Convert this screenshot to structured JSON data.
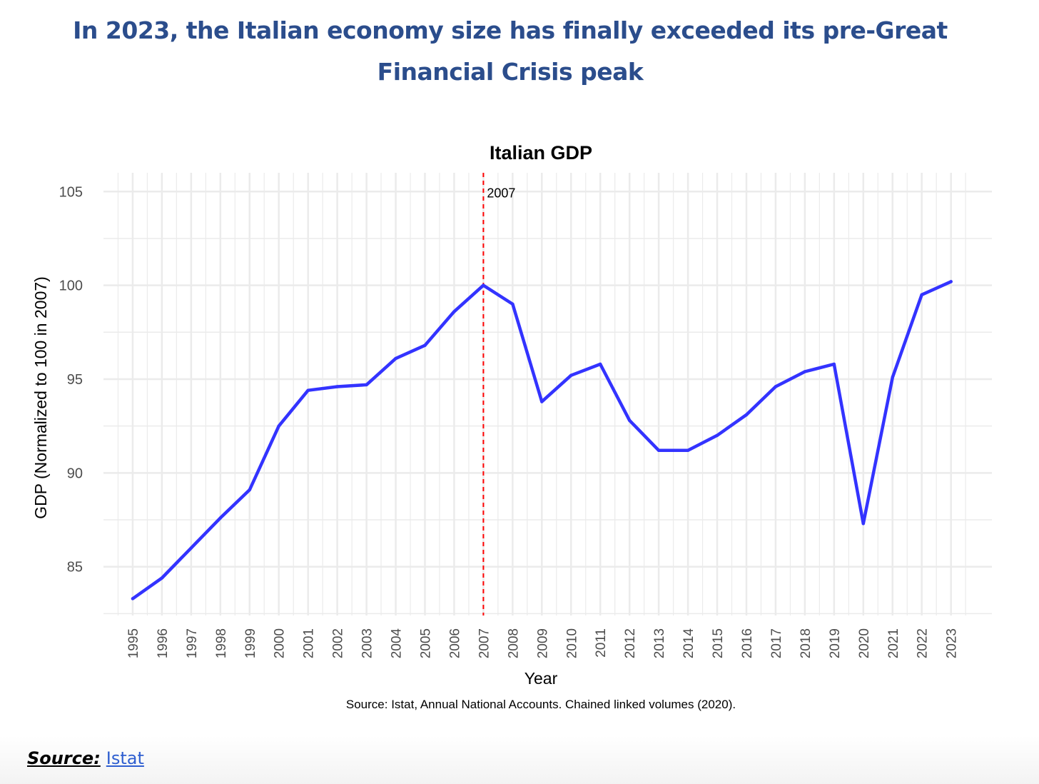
{
  "headline": "In 2023, the Italian economy size has finally exceeded its pre-Great Financial Crisis peak",
  "chart_data": {
    "type": "line",
    "title": "Italian GDP",
    "xlabel": "Year",
    "ylabel": "GDP (Normalized to 100 in 2007)",
    "caption": "Source: Istat, Annual National Accounts. Chained linked volumes (2020).",
    "x": [
      1995,
      1996,
      1997,
      1998,
      1999,
      2000,
      2001,
      2002,
      2003,
      2004,
      2005,
      2006,
      2007,
      2008,
      2009,
      2010,
      2011,
      2012,
      2013,
      2014,
      2015,
      2016,
      2017,
      2018,
      2019,
      2020,
      2021,
      2022,
      2023
    ],
    "series": [
      {
        "name": "GDP",
        "values": [
          83.3,
          84.4,
          86.0,
          87.6,
          89.1,
          92.5,
          94.4,
          94.6,
          94.7,
          96.1,
          96.8,
          98.6,
          100.0,
          99.0,
          93.8,
          95.2,
          95.8,
          92.8,
          91.2,
          91.2,
          92.0,
          93.1,
          94.6,
          95.4,
          95.8,
          87.3,
          95.1,
          99.5,
          100.2
        ]
      }
    ],
    "yticks": [
      85,
      90,
      95,
      100,
      105
    ],
    "xlim": [
      1994,
      2024.4
    ],
    "ylim": [
      82.4,
      106.0
    ],
    "vline": {
      "x": 2007,
      "label": "2007"
    },
    "colors": {
      "line": "#3333ff",
      "vline": "#ff0000",
      "grid": "#ebebeb"
    }
  },
  "footer": {
    "label": "Source:",
    "link_text": "Istat"
  }
}
